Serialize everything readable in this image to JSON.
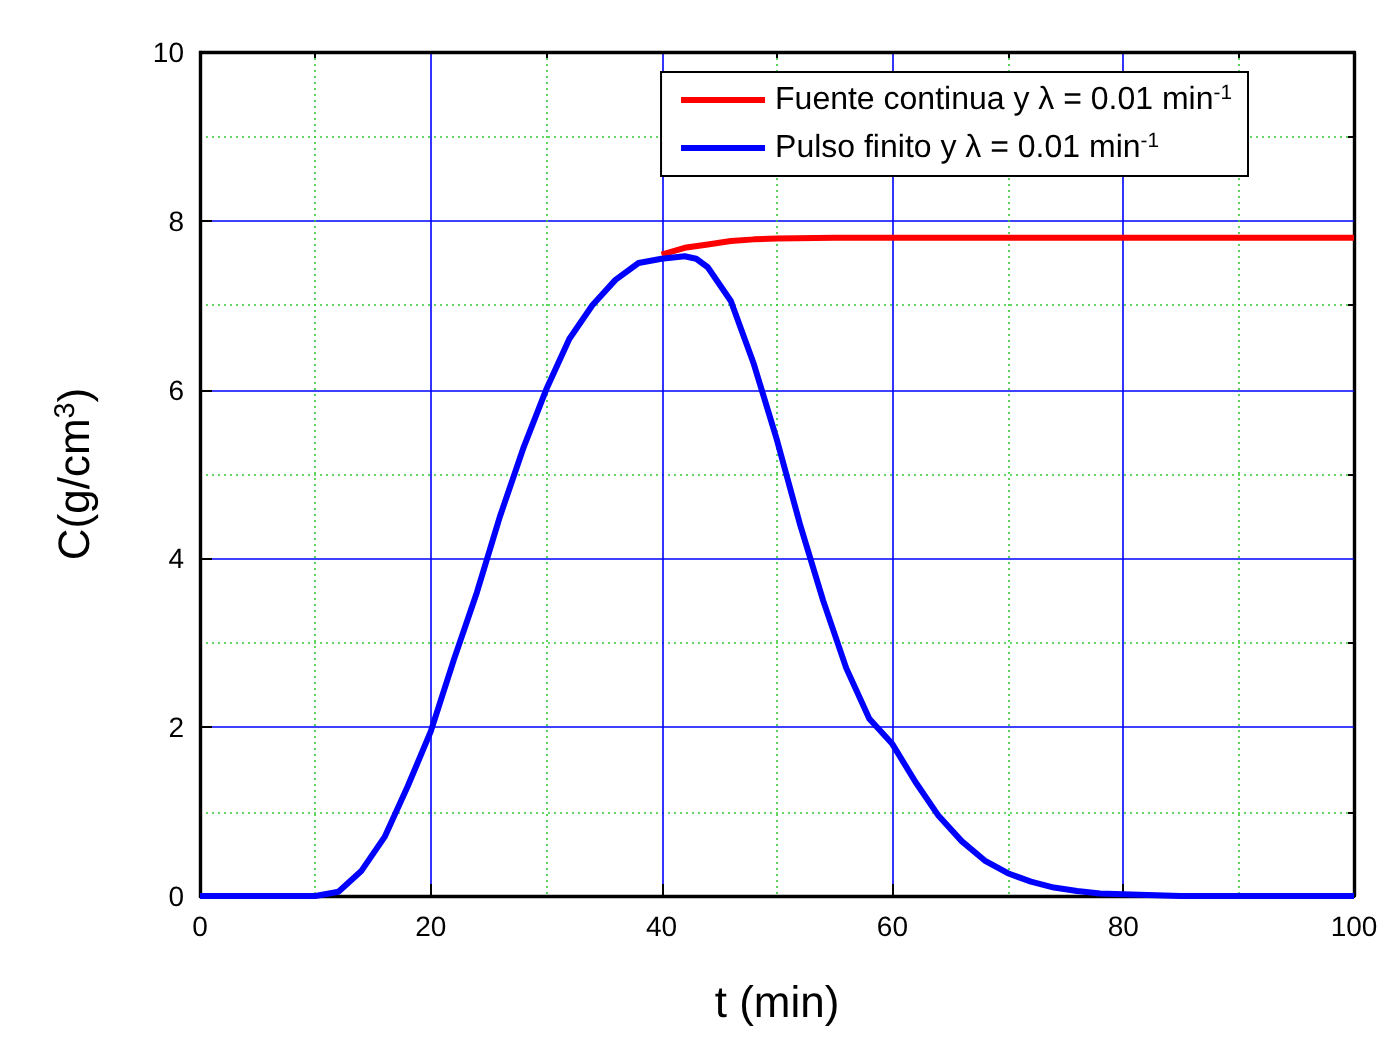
{
  "chart_data": {
    "type": "line",
    "xlabel": "t (min)",
    "ylabel": "C(g/cm$^{3}$)",
    "xlim": [
      0,
      100
    ],
    "xticks": [
      0,
      {
        "value": 10,
        "label": null
      },
      20,
      {
        "value": 30,
        "label": null
      },
      40,
      {
        "value": 50,
        "label": null
      },
      60,
      {
        "value": 70,
        "label": null
      },
      80,
      {
        "value": 90,
        "label": null
      },
      100
    ],
    "ylim": [
      0,
      10
    ],
    "yticks": [
      0,
      {
        "value": 1,
        "label": null
      },
      2,
      {
        "value": 3,
        "label": null
      },
      4,
      {
        "value": 5,
        "label": null
      },
      6,
      {
        "value": 7,
        "label": null
      },
      8,
      {
        "value": 9,
        "label": null
      },
      10
    ],
    "grid": true,
    "legend": "top right",
    "marker": "none",
    "line_style": "solid",
    "series": [
      {
        "name": "Fuente continua y λ = 0.01 min$^{-1}$",
        "color": "#ff0000",
        "x": [
          40,
          42,
          44,
          46,
          48,
          50,
          55,
          60,
          70,
          80,
          90,
          100
        ],
        "values": [
          7.6,
          7.68,
          7.72,
          7.76,
          7.78,
          7.79,
          7.8,
          7.8,
          7.8,
          7.8,
          7.8,
          7.8
        ]
      },
      {
        "name": "Pulso finito y λ = 0.01 min$^{-1}$",
        "color": "#0000ff",
        "x": [
          0,
          10,
          12,
          14,
          16,
          18,
          20,
          22,
          24,
          26,
          28,
          30,
          32,
          34,
          36,
          38,
          40,
          42,
          43,
          44,
          46,
          48,
          50,
          52,
          54,
          56,
          58,
          60,
          62,
          64,
          66,
          68,
          70,
          72,
          74,
          76,
          78,
          80,
          85,
          90,
          100
        ],
        "values": [
          0,
          0,
          0.05,
          0.3,
          0.7,
          1.3,
          1.95,
          2.8,
          3.6,
          4.5,
          5.3,
          6.0,
          6.6,
          7.0,
          7.3,
          7.5,
          7.55,
          7.58,
          7.55,
          7.45,
          7.05,
          6.3,
          5.4,
          4.4,
          3.5,
          2.7,
          2.1,
          1.8,
          1.35,
          0.95,
          0.65,
          0.42,
          0.27,
          0.17,
          0.1,
          0.06,
          0.03,
          0.02,
          0,
          0,
          0
        ]
      }
    ]
  }
}
